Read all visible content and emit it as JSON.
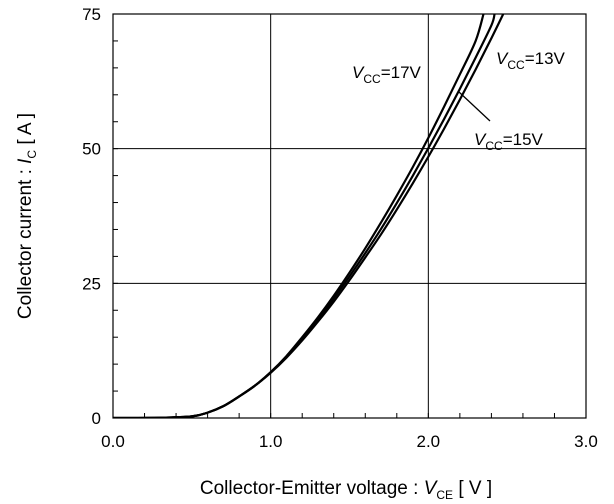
{
  "chart_data": {
    "type": "line",
    "title": "",
    "xlabel": {
      "prefix": "Collector-Emitter voltage : ",
      "symbol": "V",
      "subscript": "CE",
      "unit": " [ V ]"
    },
    "ylabel": {
      "prefix": "Collector current : ",
      "symbol": "I",
      "subscript": "C",
      "unit": " [ A ]"
    },
    "xlim": [
      0,
      3
    ],
    "ylim": [
      0,
      75
    ],
    "x_ticks": [
      "0.0",
      "1.0",
      "2.0",
      "3.0"
    ],
    "y_ticks": [
      "0",
      "25",
      "50",
      "75"
    ],
    "grid": true,
    "series": [
      {
        "name": "VCC=17V",
        "label": {
          "symbol": "V",
          "subscript": "CC",
          "value": "=17V"
        },
        "x": [
          0.0,
          0.3,
          0.5,
          0.6,
          0.7,
          0.8,
          0.9,
          1.0,
          1.1,
          1.2,
          1.3,
          1.4,
          1.5,
          1.6,
          1.7,
          1.8,
          1.9,
          2.0,
          2.1,
          2.2,
          2.3,
          2.35
        ],
        "y": [
          0.0,
          0.05,
          0.3,
          1.0,
          2.2,
          4.0,
          6.0,
          8.5,
          11.5,
          15.0,
          18.7,
          22.7,
          27.0,
          31.5,
          36.3,
          41.3,
          46.5,
          52.0,
          57.8,
          63.8,
          70.0,
          75.0
        ]
      },
      {
        "name": "VCC=15V",
        "label": {
          "symbol": "V",
          "subscript": "CC",
          "value": "=15V"
        },
        "x": [
          0.0,
          0.3,
          0.5,
          0.6,
          0.7,
          0.8,
          0.9,
          1.0,
          1.1,
          1.2,
          1.3,
          1.4,
          1.5,
          1.6,
          1.7,
          1.8,
          1.9,
          2.0,
          2.1,
          2.2,
          2.3,
          2.4,
          2.42
        ],
        "y": [
          0.0,
          0.05,
          0.3,
          1.0,
          2.2,
          4.0,
          6.0,
          8.5,
          11.4,
          14.7,
          18.3,
          22.2,
          26.3,
          30.6,
          35.1,
          39.9,
          44.9,
          50.1,
          55.5,
          61.1,
          66.9,
          72.9,
          75.0
        ]
      },
      {
        "name": "VCC=13V",
        "label": {
          "symbol": "V",
          "subscript": "CC",
          "value": "=13V"
        },
        "x": [
          0.0,
          0.3,
          0.5,
          0.6,
          0.7,
          0.8,
          0.9,
          1.0,
          1.1,
          1.2,
          1.3,
          1.4,
          1.5,
          1.6,
          1.7,
          1.8,
          1.9,
          2.0,
          2.1,
          2.2,
          2.3,
          2.4,
          2.5,
          2.51
        ],
        "y": [
          0.0,
          0.05,
          0.3,
          1.0,
          2.2,
          4.0,
          6.0,
          8.4,
          11.2,
          14.4,
          17.9,
          21.6,
          25.6,
          29.8,
          34.1,
          38.7,
          43.5,
          48.5,
          53.7,
          59.1,
          64.7,
          70.5,
          76.5,
          77.0
        ]
      }
    ]
  }
}
